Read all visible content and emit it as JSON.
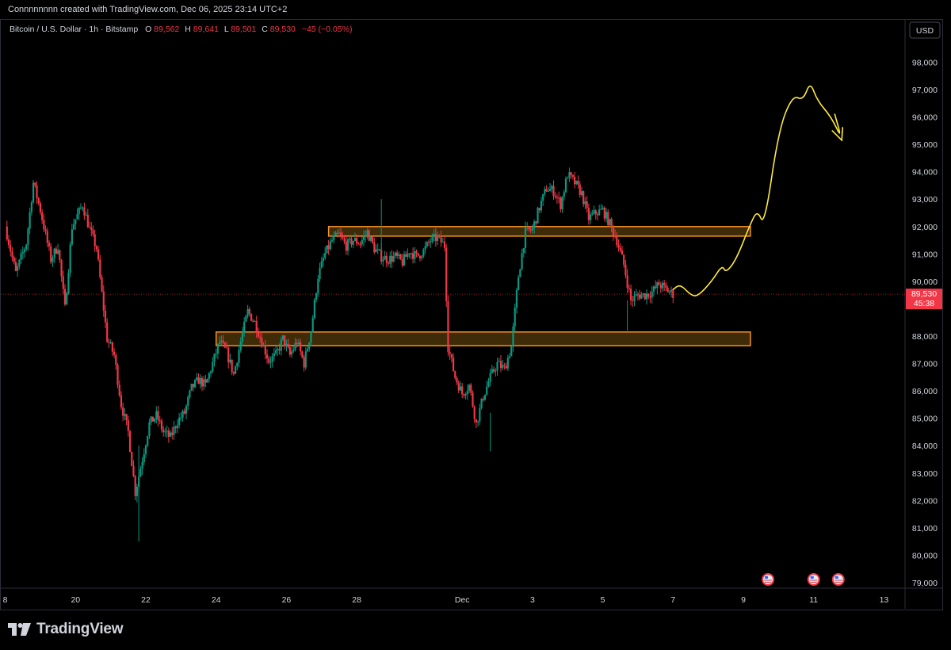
{
  "header": {
    "credit": "Connnnnnnn created with TradingView.com, Dec 06, 2025 23:14 UTC+2"
  },
  "legend": {
    "title": "Bitcoin / U.S. Dollar · 1h · Bitstamp",
    "o_label": "O",
    "o_value": "89,562",
    "h_label": "H",
    "h_value": "89,641",
    "l_label": "L",
    "l_value": "89,501",
    "c_label": "C",
    "c_value": "89,530",
    "change": "−45 (−0.05%)"
  },
  "currency_button": "USD",
  "price_tag": {
    "price": "89,530",
    "countdown": "45:38",
    "color": "#f23645"
  },
  "branding": {
    "name": "TradingView"
  },
  "colors": {
    "up": "#089981",
    "down": "#f23645",
    "zone": "#f7931a",
    "zone_fill": "#4a3208",
    "drawing": "#ffeb3b",
    "background": "#000000"
  },
  "chart_data": {
    "type": "candlestick",
    "title": "Bitcoin / U.S. Dollar · 1h · Bitstamp",
    "ylim": [
      78600,
      99400
    ],
    "y_ticks": [
      "98,000",
      "97,000",
      "96,000",
      "95,000",
      "94,000",
      "93,000",
      "92,000",
      "91,000",
      "90,000",
      "88,000",
      "87,000",
      "86,000",
      "85,000",
      "84,000",
      "83,000",
      "82,000",
      "81,000",
      "80,000",
      "79,000"
    ],
    "x_ticks": [
      {
        "label": "8",
        "day": 18
      },
      {
        "label": "20",
        "day": 20
      },
      {
        "label": "22",
        "day": 22
      },
      {
        "label": "24",
        "day": 24
      },
      {
        "label": "26",
        "day": 26
      },
      {
        "label": "28",
        "day": 28
      },
      {
        "label": "Dec",
        "day": 31
      },
      {
        "label": "3",
        "day": 33
      },
      {
        "label": "5",
        "day": 35
      },
      {
        "label": "7",
        "day": 37
      },
      {
        "label": "9",
        "day": 39
      },
      {
        "label": "11",
        "day": 41
      },
      {
        "label": "13",
        "day": 43
      }
    ],
    "price_path": [
      [
        18.0,
        92000
      ],
      [
        18.3,
        90300
      ],
      [
        18.6,
        91400
      ],
      [
        18.8,
        93600
      ],
      [
        19.0,
        92600
      ],
      [
        19.3,
        90800
      ],
      [
        19.5,
        91300
      ],
      [
        19.7,
        89000
      ],
      [
        19.9,
        92000
      ],
      [
        20.2,
        92800
      ],
      [
        20.4,
        91900
      ],
      [
        20.6,
        91200
      ],
      [
        20.9,
        87900
      ],
      [
        21.1,
        87300
      ],
      [
        21.3,
        85500
      ],
      [
        21.5,
        84500
      ],
      [
        21.7,
        82300
      ],
      [
        21.9,
        83500
      ],
      [
        22.1,
        84800
      ],
      [
        22.3,
        85100
      ],
      [
        22.5,
        84500
      ],
      [
        22.7,
        84300
      ],
      [
        22.9,
        84900
      ],
      [
        23.1,
        85200
      ],
      [
        23.3,
        86100
      ],
      [
        23.5,
        86400
      ],
      [
        23.7,
        86200
      ],
      [
        23.9,
        87000
      ],
      [
        24.1,
        87800
      ],
      [
        24.3,
        87400
      ],
      [
        24.5,
        86600
      ],
      [
        24.7,
        87800
      ],
      [
        24.9,
        88900
      ],
      [
        25.1,
        88500
      ],
      [
        25.3,
        87800
      ],
      [
        25.5,
        87100
      ],
      [
        25.7,
        87300
      ],
      [
        25.9,
        87900
      ],
      [
        26.1,
        87300
      ],
      [
        26.3,
        87800
      ],
      [
        26.5,
        87000
      ],
      [
        26.7,
        88200
      ],
      [
        26.9,
        90200
      ],
      [
        27.1,
        91000
      ],
      [
        27.3,
        91500
      ],
      [
        27.5,
        91700
      ],
      [
        27.7,
        91300
      ],
      [
        27.9,
        91500
      ],
      [
        28.1,
        91400
      ],
      [
        28.3,
        91800
      ],
      [
        28.5,
        91200
      ],
      [
        28.7,
        90900
      ],
      [
        28.9,
        90800
      ],
      [
        29.1,
        90900
      ],
      [
        29.3,
        90700
      ],
      [
        29.5,
        91100
      ],
      [
        29.7,
        90900
      ],
      [
        29.9,
        91100
      ],
      [
        30.1,
        91500
      ],
      [
        30.3,
        91600
      ],
      [
        30.5,
        91300
      ],
      [
        30.6,
        87600
      ],
      [
        30.8,
        86500
      ],
      [
        31.0,
        85900
      ],
      [
        31.2,
        86200
      ],
      [
        31.4,
        84800
      ],
      [
        31.6,
        85800
      ],
      [
        31.8,
        86500
      ],
      [
        32.0,
        87000
      ],
      [
        32.2,
        86800
      ],
      [
        32.4,
        87600
      ],
      [
        32.6,
        90200
      ],
      [
        32.8,
        91800
      ],
      [
        33.0,
        91900
      ],
      [
        33.2,
        92700
      ],
      [
        33.4,
        93400
      ],
      [
        33.6,
        93300
      ],
      [
        33.8,
        92800
      ],
      [
        34.0,
        93900
      ],
      [
        34.2,
        93600
      ],
      [
        34.4,
        93200
      ],
      [
        34.6,
        92300
      ],
      [
        34.8,
        92500
      ],
      [
        35.0,
        92600
      ],
      [
        35.2,
        92100
      ],
      [
        35.4,
        91500
      ],
      [
        35.6,
        90600
      ],
      [
        35.8,
        89300
      ],
      [
        36.0,
        89500
      ],
      [
        36.2,
        89500
      ],
      [
        36.4,
        89600
      ],
      [
        36.6,
        89900
      ],
      [
        36.8,
        89700
      ],
      [
        37.0,
        89530
      ]
    ],
    "annotations": [
      {
        "type": "zone",
        "label": "resistance",
        "x_start_day": 27.2,
        "x_end_day": 39.2,
        "y_high": 92000,
        "y_low": 91650
      },
      {
        "type": "zone",
        "label": "support",
        "x_start_day": 24.0,
        "x_end_day": 39.2,
        "y_high": 88150,
        "y_low": 87650
      },
      {
        "type": "projection_path",
        "points": [
          [
            37.0,
            89700
          ],
          [
            37.2,
            89900
          ],
          [
            37.5,
            89500
          ],
          [
            37.7,
            89450
          ],
          [
            38.1,
            90000
          ],
          [
            38.4,
            90600
          ],
          [
            38.5,
            90300
          ],
          [
            38.8,
            90800
          ],
          [
            39.2,
            92100
          ],
          [
            39.4,
            92600
          ],
          [
            39.6,
            92000
          ],
          [
            40.0,
            95500
          ],
          [
            40.4,
            96800
          ],
          [
            40.7,
            96600
          ],
          [
            40.9,
            97300
          ],
          [
            41.1,
            96600
          ],
          [
            41.5,
            96000
          ],
          [
            41.8,
            95200
          ],
          [
            41.6,
            96100
          ]
        ],
        "arrow_end": [
          41.8,
          95150
        ]
      }
    ],
    "markers": [
      {
        "type": "event-flag",
        "day": 39.7
      },
      {
        "type": "event-flag",
        "day": 41.0
      },
      {
        "type": "event-flag",
        "day": 41.7
      }
    ]
  }
}
